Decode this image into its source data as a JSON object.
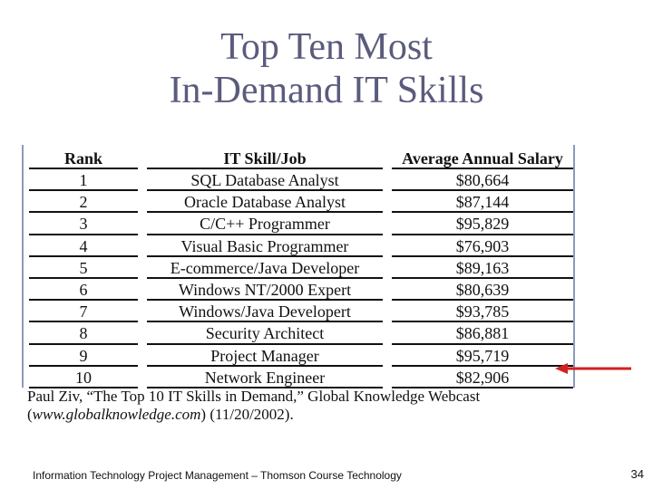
{
  "slide": {
    "title_line1": "Top Ten Most",
    "title_line2": "In-Demand IT Skills"
  },
  "table": {
    "headers": {
      "rank": "Rank",
      "skill": "IT Skill/Job",
      "salary": "Average Annual Salary"
    },
    "rows": [
      {
        "rank": "1",
        "skill": "SQL Database Analyst",
        "salary": "$80,664"
      },
      {
        "rank": "2",
        "skill": "Oracle Database Analyst",
        "salary": "$87,144"
      },
      {
        "rank": "3",
        "skill": "C/C++ Programmer",
        "salary": "$95,829"
      },
      {
        "rank": "4",
        "skill": "Visual Basic Programmer",
        "salary": "$76,903"
      },
      {
        "rank": "5",
        "skill": "E-commerce/Java Developer",
        "salary": "$89,163"
      },
      {
        "rank": "6",
        "skill": "Windows NT/2000 Expert",
        "salary": "$80,639"
      },
      {
        "rank": "7",
        "skill": "Windows/Java Developert",
        "salary": "$93,785"
      },
      {
        "rank": "8",
        "skill": "Security Architect",
        "salary": "$86,881"
      },
      {
        "rank": "9",
        "skill": "Project Manager",
        "salary": "$95,719"
      },
      {
        "rank": "10",
        "skill": "Network Engineer",
        "salary": "$82,906"
      }
    ]
  },
  "citation": {
    "line1": "Paul Ziv, “The Top 10 IT Skills in Demand,” Global Knowledge Webcast",
    "open_paren": "(",
    "url": "www.globalknowledge.com",
    "line2_rest": ") (11/20/2002)."
  },
  "footer": {
    "text": "Information Technology Project Management – Thomson Course Technology",
    "page_number": "34"
  },
  "colors": {
    "title": "#5b5b7e",
    "arrow": "#d42020",
    "table_border": "#8b9bbd"
  },
  "annotation": {
    "icon": "arrow-left-icon"
  }
}
